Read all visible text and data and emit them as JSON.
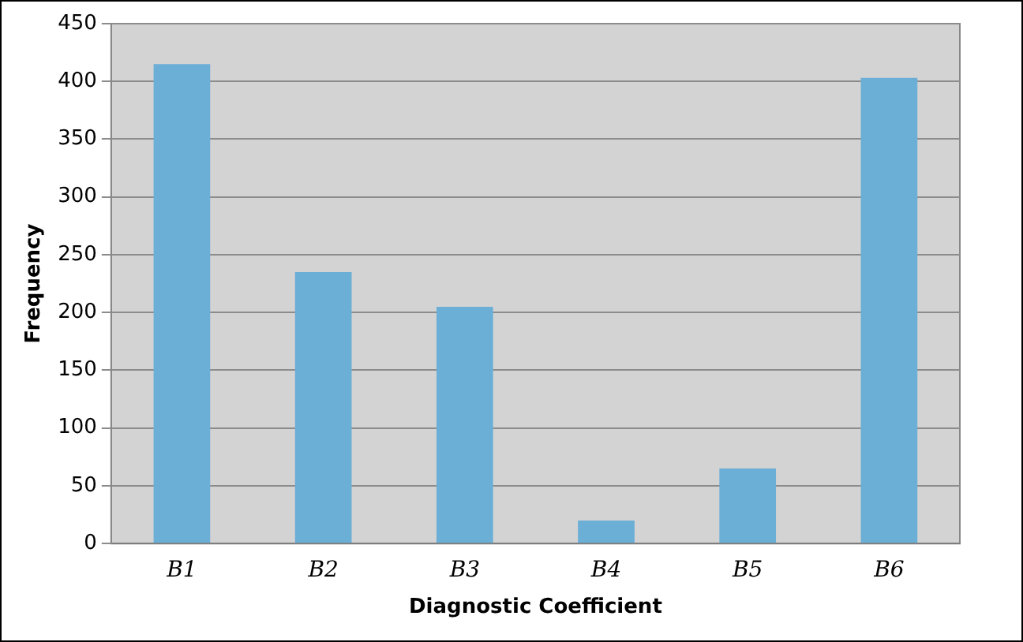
{
  "chart_data": {
    "type": "bar",
    "xlabel": "Diagnostic Coefficient",
    "ylabel": "Frequency",
    "categories": [
      "B1",
      "B2",
      "B3",
      "B4",
      "B5",
      "B6"
    ],
    "values": [
      415,
      235,
      205,
      20,
      65,
      403
    ],
    "color": "#6baed6",
    "ylim": [
      0,
      450
    ],
    "yticks": [
      0,
      50,
      100,
      150,
      200,
      250,
      300,
      350,
      400,
      450
    ],
    "grid": "y",
    "legend": false
  }
}
